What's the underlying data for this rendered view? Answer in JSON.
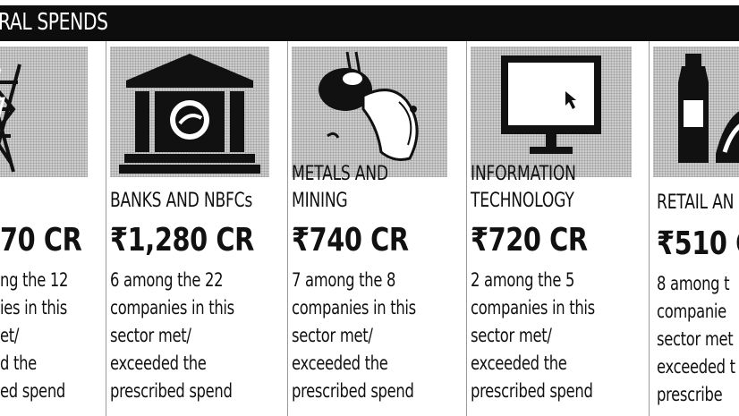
{
  "header": {
    "title": "RAL SPENDS"
  },
  "columns": [
    {
      "icon": "power-tower-icon",
      "sector_lines": [],
      "amount": "70 CR",
      "desc_lines": [
        "ng the 12",
        "ies in this",
        "et/",
        "d the",
        "ed spend"
      ]
    },
    {
      "icon": "bank-building-icon",
      "sector_lines": [
        "BANKS AND NBFCs"
      ],
      "amount": "₹1,280 CR",
      "desc_lines": [
        "6 among the 22",
        "companies in this",
        "sector met/",
        "exceeded the",
        "prescribed spend"
      ]
    },
    {
      "icon": "crucible-pouring-icon",
      "sector_lines": [
        "METALS AND",
        "MINING"
      ],
      "amount": "₹740 CR",
      "desc_lines": [
        "7 among the 8",
        "companies in this",
        "sector met/",
        "exceeded the",
        "prescribed spend"
      ]
    },
    {
      "icon": "computer-monitor-icon",
      "sector_lines": [
        "INFORMATION",
        "TECHNOLOGY"
      ],
      "amount": "₹720 CR",
      "desc_lines": [
        "2 among the 5",
        "companies in this",
        "sector met/",
        "exceeded the",
        "prescribed spend"
      ]
    },
    {
      "icon": "retail-bottle-icon",
      "sector_lines": [
        "RETAIL AN"
      ],
      "amount": "₹510 C",
      "desc_lines": [
        "8 among t",
        "companie",
        "sector met",
        "exceeded t",
        "prescribe"
      ]
    }
  ]
}
